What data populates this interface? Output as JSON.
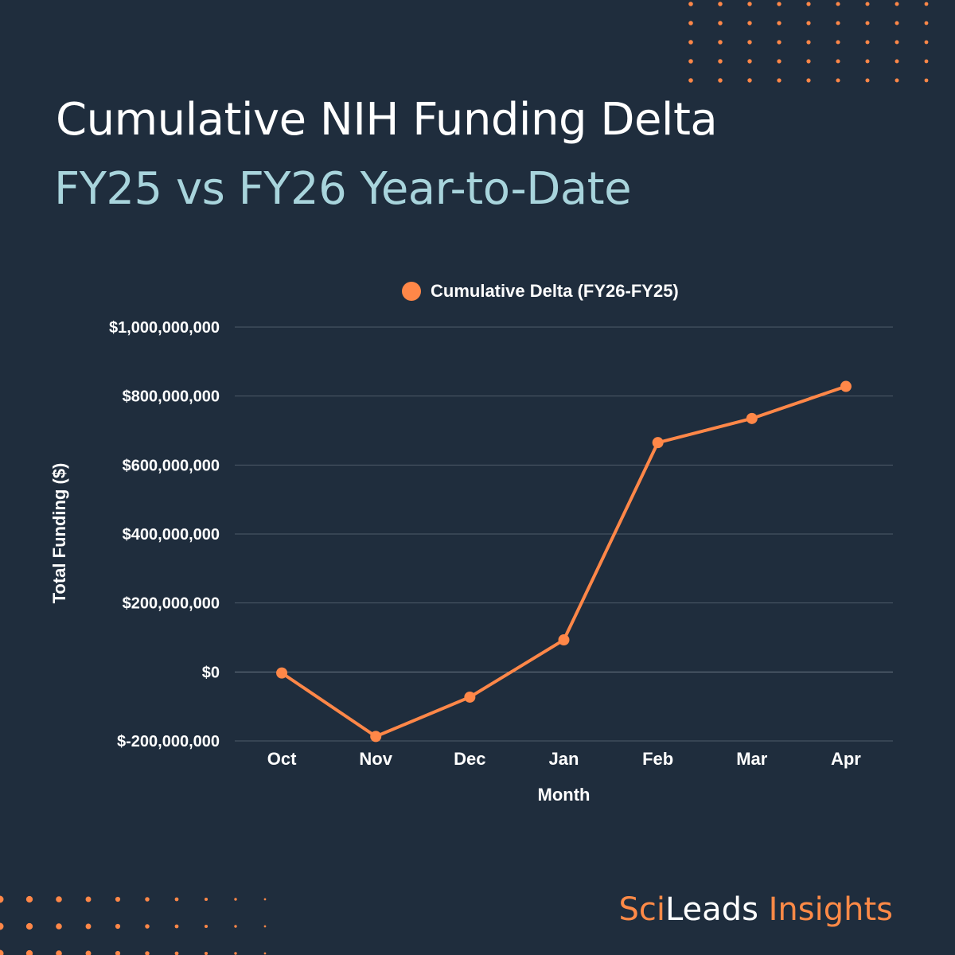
{
  "header": {
    "title": "Cumulative NIH Funding Delta",
    "subtitle": "FY25 vs FY26 Year-to-Date"
  },
  "brand": {
    "part1": "Sci",
    "part2": "Leads",
    "part3": " Insights"
  },
  "colors": {
    "background": "#1f2d3d",
    "series": "#ff8748",
    "title": "#ffffff",
    "subtitle": "#a8d4dc",
    "grid": "#4e5b69"
  },
  "chart_data": {
    "type": "line",
    "title": "",
    "xlabel": "Month",
    "ylabel": "Total Funding ($)",
    "ylim": [
      -200000000,
      1000000000
    ],
    "yticks": [
      {
        "value": -200000000,
        "label": "$-200,000,000"
      },
      {
        "value": 0,
        "label": "$0"
      },
      {
        "value": 200000000,
        "label": "$200,000,000"
      },
      {
        "value": 400000000,
        "label": "$400,000,000"
      },
      {
        "value": 600000000,
        "label": "$600,000,000"
      },
      {
        "value": 800000000,
        "label": "$800,000,000"
      },
      {
        "value": 1000000000,
        "label": "$1,000,000,000"
      }
    ],
    "categories": [
      "Oct",
      "Nov",
      "Dec",
      "Jan",
      "Feb",
      "Mar",
      "Apr"
    ],
    "series": [
      {
        "name": "Cumulative Delta (FY26-FY25)",
        "values": [
          -3000000,
          -187000000,
          -73000000,
          93000000,
          665000000,
          735000000,
          828000000
        ]
      }
    ],
    "grid": true,
    "legend": "top-center"
  }
}
